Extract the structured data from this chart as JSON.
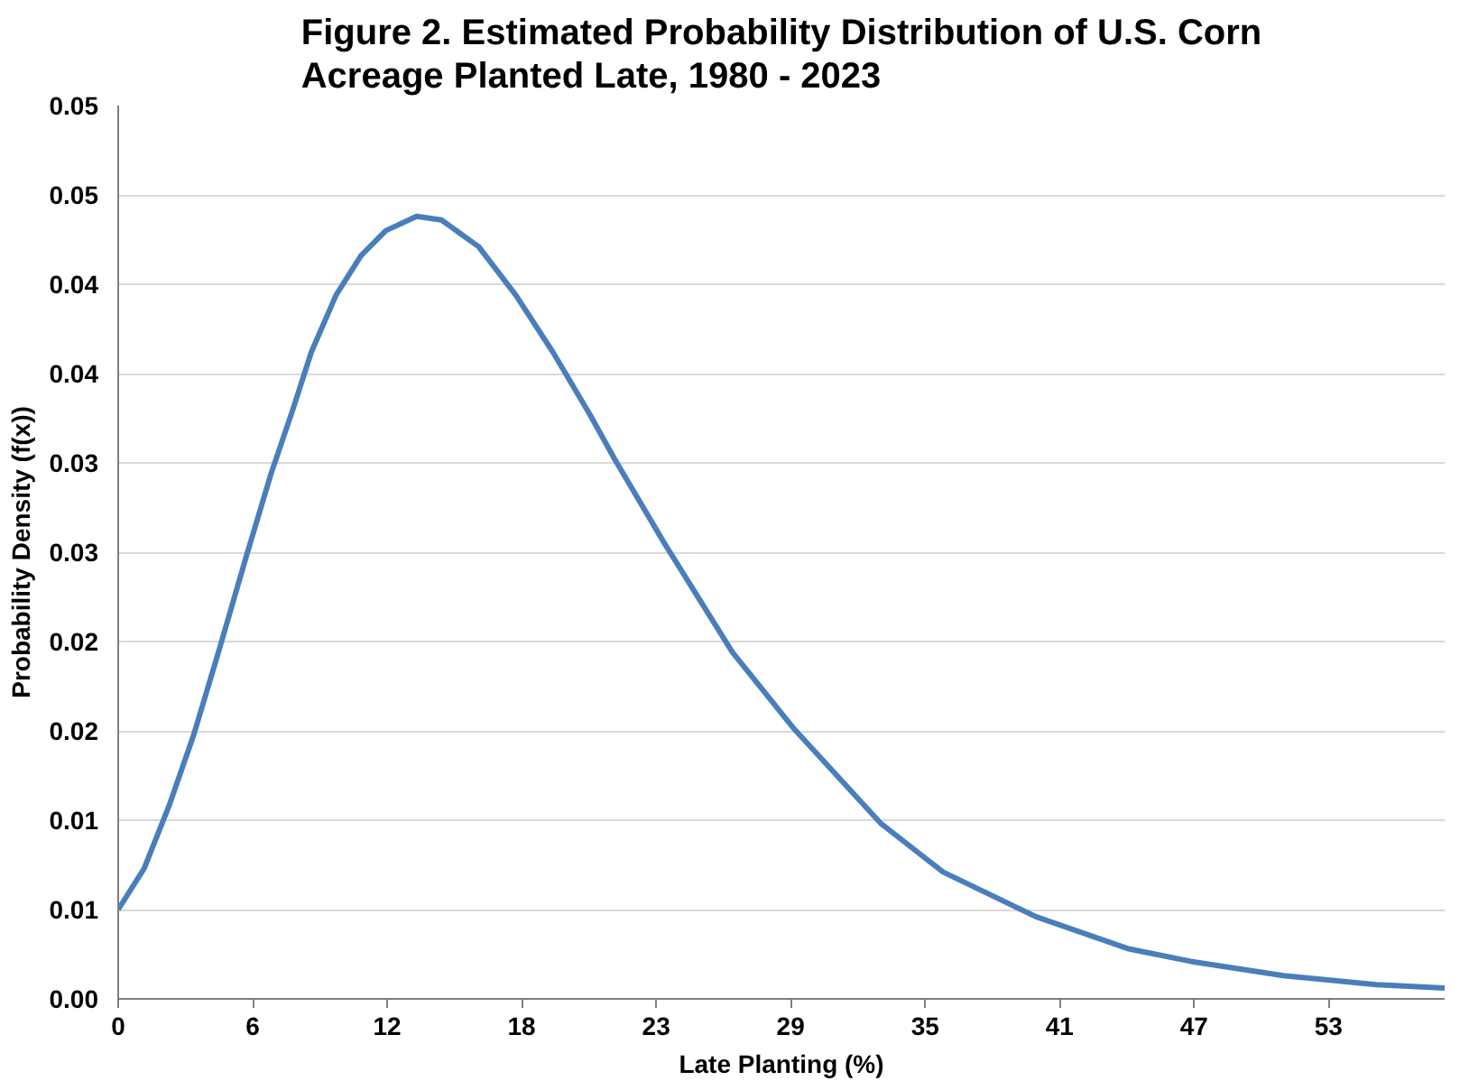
{
  "chart_data": {
    "type": "line",
    "title": "Figure 2. Estimated Probability Distribution of U.S. Corn\nAcreage Planted Late, 1980 - 2023",
    "xlabel": "Late Planting (%)",
    "ylabel": "Probability Density (f(x))",
    "x": [
      0,
      1.13,
      2.21,
      3.29,
      4.36,
      5.58,
      6.65,
      7.6,
      8.4,
      9.48,
      10.56,
      11.64,
      12.98,
      14.06,
      15.68,
      17.29,
      18.91,
      20.52,
      21.6,
      23.76,
      26.72,
      29.41,
      33.19,
      35.88,
      39.92,
      43.96,
      46.65,
      50.69,
      54.73,
      57.7
    ],
    "series": [
      {
        "color": "#4a7ebb",
        "values": [
          0.005,
          0.0073,
          0.0108,
          0.0148,
          0.0194,
          0.0248,
          0.0294,
          0.033,
          0.0362,
          0.0394,
          0.0416,
          0.043,
          0.0438,
          0.0436,
          0.0421,
          0.0394,
          0.0362,
          0.0327,
          0.0302,
          0.0255,
          0.0194,
          0.0151,
          0.0098,
          0.0071,
          0.0046,
          0.0028,
          0.0021,
          0.0013,
          0.0008,
          0.0006
        ]
      }
    ],
    "xlim": [
      0,
      57.7
    ],
    "xticks": [
      {
        "value": 0,
        "label": "0"
      },
      {
        "value": 5.85,
        "label": "6"
      },
      {
        "value": 11.7,
        "label": "12"
      },
      {
        "value": 17.55,
        "label": "18"
      },
      {
        "value": 23.4,
        "label": "23"
      },
      {
        "value": 29.25,
        "label": "29"
      },
      {
        "value": 35.1,
        "label": "35"
      },
      {
        "value": 40.95,
        "label": "41"
      },
      {
        "value": 46.8,
        "label": "47"
      },
      {
        "value": 52.65,
        "label": "53"
      }
    ],
    "ylim": [
      0,
      0.05
    ],
    "yticks": [
      {
        "value": 0,
        "label": "0.00"
      },
      {
        "value": 0.005,
        "label": "0.01"
      },
      {
        "value": 0.01,
        "label": "0.01"
      },
      {
        "value": 0.015,
        "label": "0.02"
      },
      {
        "value": 0.02,
        "label": "0.02"
      },
      {
        "value": 0.025,
        "label": "0.03"
      },
      {
        "value": 0.03,
        "label": "0.03"
      },
      {
        "value": 0.035,
        "label": "0.04"
      },
      {
        "value": 0.04,
        "label": "0.04"
      },
      {
        "value": 0.045,
        "label": "0.05"
      },
      {
        "value": 0.05,
        "label": "0.05"
      }
    ],
    "grid": "y",
    "marker": "none",
    "line_style": "solid"
  }
}
